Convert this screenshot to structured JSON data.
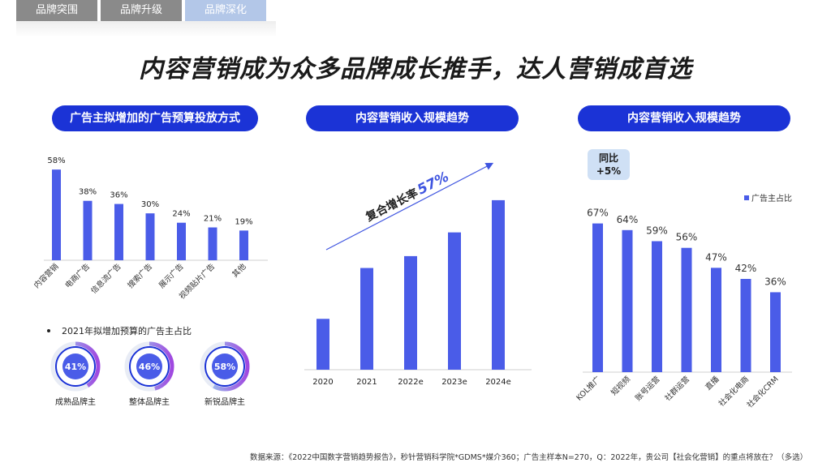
{
  "tabs": [
    {
      "label": "品牌突围"
    },
    {
      "label": "品牌升级"
    },
    {
      "label": "品牌深化"
    }
  ],
  "headline": "内容营销成为众多品牌成长推手，达人营销成首选",
  "panels": {
    "left_title": "广告主拟增加的广告预算投放方式",
    "middle_title": "内容营销收入规模趋势",
    "right_title": "内容营销收入规模趋势"
  },
  "donut_section": {
    "bullet_text": "2021年拟增加预算的广告主占比"
  },
  "growth_annotation": {
    "text": "复合增长率",
    "value": "57%"
  },
  "yoy_badge": {
    "line1": "同比",
    "line2": "+5%"
  },
  "footnote": "数据来源：《2022中国数字营销趋势报告》，秒针营销科学院*GDMS*媒介360；广告主样本N=270，Q：2022年，贵公司【社会化营销】的重点将放在？（多选）",
  "colors": {
    "bar": "#4a5ce8",
    "pill": "#1b33d6",
    "donut_ring": "#1b33d6",
    "arrow": "#3f55e0"
  },
  "chart_data": [
    {
      "type": "bar",
      "categories": [
        "内容营销",
        "电商广告",
        "信息流广告",
        "搜索广告",
        "展示广告",
        "视频贴片广告",
        "其他"
      ],
      "values": [
        58,
        38,
        36,
        30,
        24,
        21,
        19
      ],
      "value_labels": [
        "58%",
        "38%",
        "36%",
        "30%",
        "24%",
        "21%",
        "19%"
      ],
      "ylim": [
        0,
        70
      ]
    },
    {
      "type": "bar",
      "categories": [
        "2020",
        "2021",
        "2022e",
        "2023e",
        "2024e"
      ],
      "values": [
        30,
        60,
        67,
        81,
        100
      ],
      "ylim": [
        0,
        110
      ]
    },
    {
      "type": "bar",
      "categories": [
        "KOL推广",
        "短视频",
        "账号运营",
        "社群运营",
        "直播",
        "社会化电商",
        "社会化CRM"
      ],
      "values": [
        67,
        64,
        59,
        56,
        47,
        42,
        36
      ],
      "value_labels": [
        "67%",
        "64%",
        "59%",
        "56%",
        "47%",
        "42%",
        "36%"
      ],
      "legend": "广告主占比",
      "ylim": [
        0,
        80
      ]
    },
    {
      "type": "pie",
      "donuts": [
        {
          "label": "成熟品牌主",
          "value": 41,
          "text": "41%"
        },
        {
          "label": "整体品牌主",
          "value": 46,
          "text": "46%"
        },
        {
          "label": "新锐品牌主",
          "value": 58,
          "text": "58%"
        }
      ]
    }
  ]
}
